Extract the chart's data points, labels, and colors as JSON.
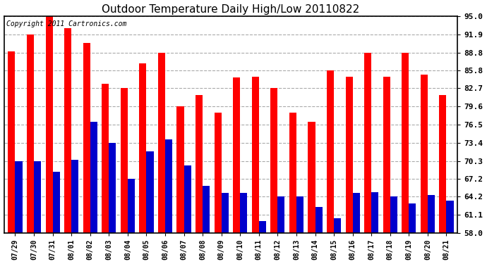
{
  "title": "Outdoor Temperature Daily High/Low 20110822",
  "copyright": "Copyright 2011 Cartronics.com",
  "dates": [
    "07/29",
    "07/30",
    "07/31",
    "08/01",
    "08/02",
    "08/03",
    "08/04",
    "08/05",
    "08/06",
    "08/07",
    "08/08",
    "08/09",
    "08/10",
    "08/11",
    "08/12",
    "08/13",
    "08/14",
    "08/15",
    "08/16",
    "08/17",
    "08/18",
    "08/19",
    "08/20",
    "08/21"
  ],
  "highs": [
    89.0,
    91.9,
    95.0,
    93.0,
    90.5,
    83.5,
    82.7,
    87.0,
    88.8,
    79.6,
    81.5,
    78.5,
    84.5,
    84.7,
    82.7,
    78.5,
    77.0,
    85.8,
    84.7,
    88.8,
    84.7,
    88.8,
    85.0,
    81.5
  ],
  "lows": [
    70.3,
    70.3,
    68.5,
    70.5,
    77.0,
    73.4,
    67.2,
    72.0,
    74.0,
    69.5,
    66.0,
    64.8,
    64.8,
    60.0,
    64.2,
    64.2,
    62.5,
    60.5,
    64.8,
    65.0,
    64.2,
    63.0,
    64.5,
    63.5
  ],
  "y_ticks": [
    58.0,
    61.1,
    64.2,
    67.2,
    70.3,
    73.4,
    76.5,
    79.6,
    82.7,
    85.8,
    88.8,
    91.9,
    95.0
  ],
  "ylim": [
    58.0,
    95.0
  ],
  "bar_width": 0.38,
  "high_color": "#ff0000",
  "low_color": "#0000cc",
  "bg_color": "#ffffff",
  "grid_color": "#aaaaaa",
  "plot_bg_color": "#ffffff",
  "title_fontsize": 11,
  "copyright_fontsize": 7
}
